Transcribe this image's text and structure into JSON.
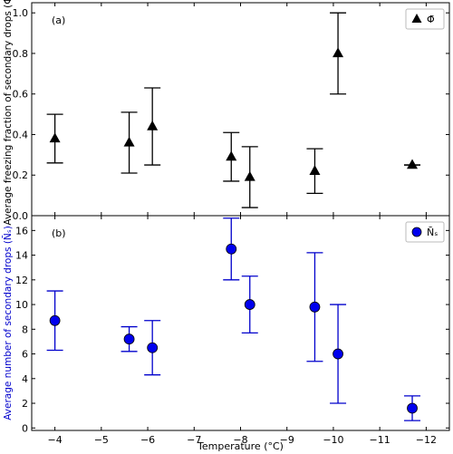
{
  "chart_data": [
    {
      "type": "scatter",
      "panel_label": "(a)",
      "ylabel": "Average freezing fraction of secondary drops (Φ̄)",
      "ylabel_color": "#000000",
      "legend": {
        "label": "Φ̄",
        "placement": "top-right",
        "marker": "triangle"
      },
      "marker_color": "#000000",
      "errorbar_color": "#000000",
      "xlim": [
        -3.5,
        -12.5
      ],
      "ylim": [
        0,
        1.05
      ],
      "yticks": [
        0.0,
        0.2,
        0.4,
        0.6,
        0.8,
        1.0
      ],
      "ytick_labels": [
        "0.0",
        "0.2",
        "0.4",
        "0.6",
        "0.8",
        "1.0"
      ],
      "points": [
        {
          "x": -4.0,
          "y": 0.38,
          "lo": 0.26,
          "hi": 0.5
        },
        {
          "x": -5.6,
          "y": 0.36,
          "lo": 0.21,
          "hi": 0.51
        },
        {
          "x": -6.1,
          "y": 0.44,
          "lo": 0.25,
          "hi": 0.63
        },
        {
          "x": -7.8,
          "y": 0.29,
          "lo": 0.17,
          "hi": 0.41
        },
        {
          "x": -8.2,
          "y": 0.19,
          "lo": 0.04,
          "hi": 0.34
        },
        {
          "x": -9.6,
          "y": 0.22,
          "lo": 0.11,
          "hi": 0.33
        },
        {
          "x": -10.1,
          "y": 0.8,
          "lo": 0.6,
          "hi": 1.0
        },
        {
          "x": -11.7,
          "y": 0.25,
          "lo": 0.25,
          "hi": 0.25
        }
      ]
    },
    {
      "type": "scatter",
      "panel_label": "(b)",
      "ylabel": "Average number of secondary drops (N̄ₛ)",
      "ylabel_color": "#0000cc",
      "legend": {
        "label": "N̄ₛ",
        "placement": "top-right",
        "marker": "circle"
      },
      "marker_color": "#0000ee",
      "errorbar_color": "#0000cc",
      "xlabel": "Temperature (°C)",
      "xlim": [
        -3.5,
        -12.5
      ],
      "xticks": [
        -4,
        -5,
        -6,
        -7,
        -8,
        -9,
        -10,
        -11,
        -12
      ],
      "xtick_labels": [
        "−4",
        "−5",
        "−6",
        "−7",
        "−8",
        "−9",
        "−10",
        "−11",
        "−12"
      ],
      "ylim": [
        -0.2,
        17.2
      ],
      "yticks": [
        0,
        2,
        4,
        6,
        8,
        10,
        12,
        14,
        16
      ],
      "ytick_labels": [
        "0",
        "2",
        "4",
        "6",
        "8",
        "10",
        "12",
        "14",
        "16"
      ],
      "points": [
        {
          "x": -4.0,
          "y": 8.7,
          "lo": 6.3,
          "hi": 11.1
        },
        {
          "x": -5.6,
          "y": 7.2,
          "lo": 6.2,
          "hi": 8.2
        },
        {
          "x": -6.1,
          "y": 6.5,
          "lo": 4.3,
          "hi": 8.7
        },
        {
          "x": -7.8,
          "y": 14.5,
          "lo": 12.0,
          "hi": 17.0
        },
        {
          "x": -8.2,
          "y": 10.0,
          "lo": 7.7,
          "hi": 12.3
        },
        {
          "x": -9.6,
          "y": 9.8,
          "lo": 5.4,
          "hi": 14.2
        },
        {
          "x": -10.1,
          "y": 6.0,
          "lo": 2.0,
          "hi": 10.0
        },
        {
          "x": -11.7,
          "y": 1.6,
          "lo": 0.6,
          "hi": 2.6
        }
      ]
    }
  ]
}
